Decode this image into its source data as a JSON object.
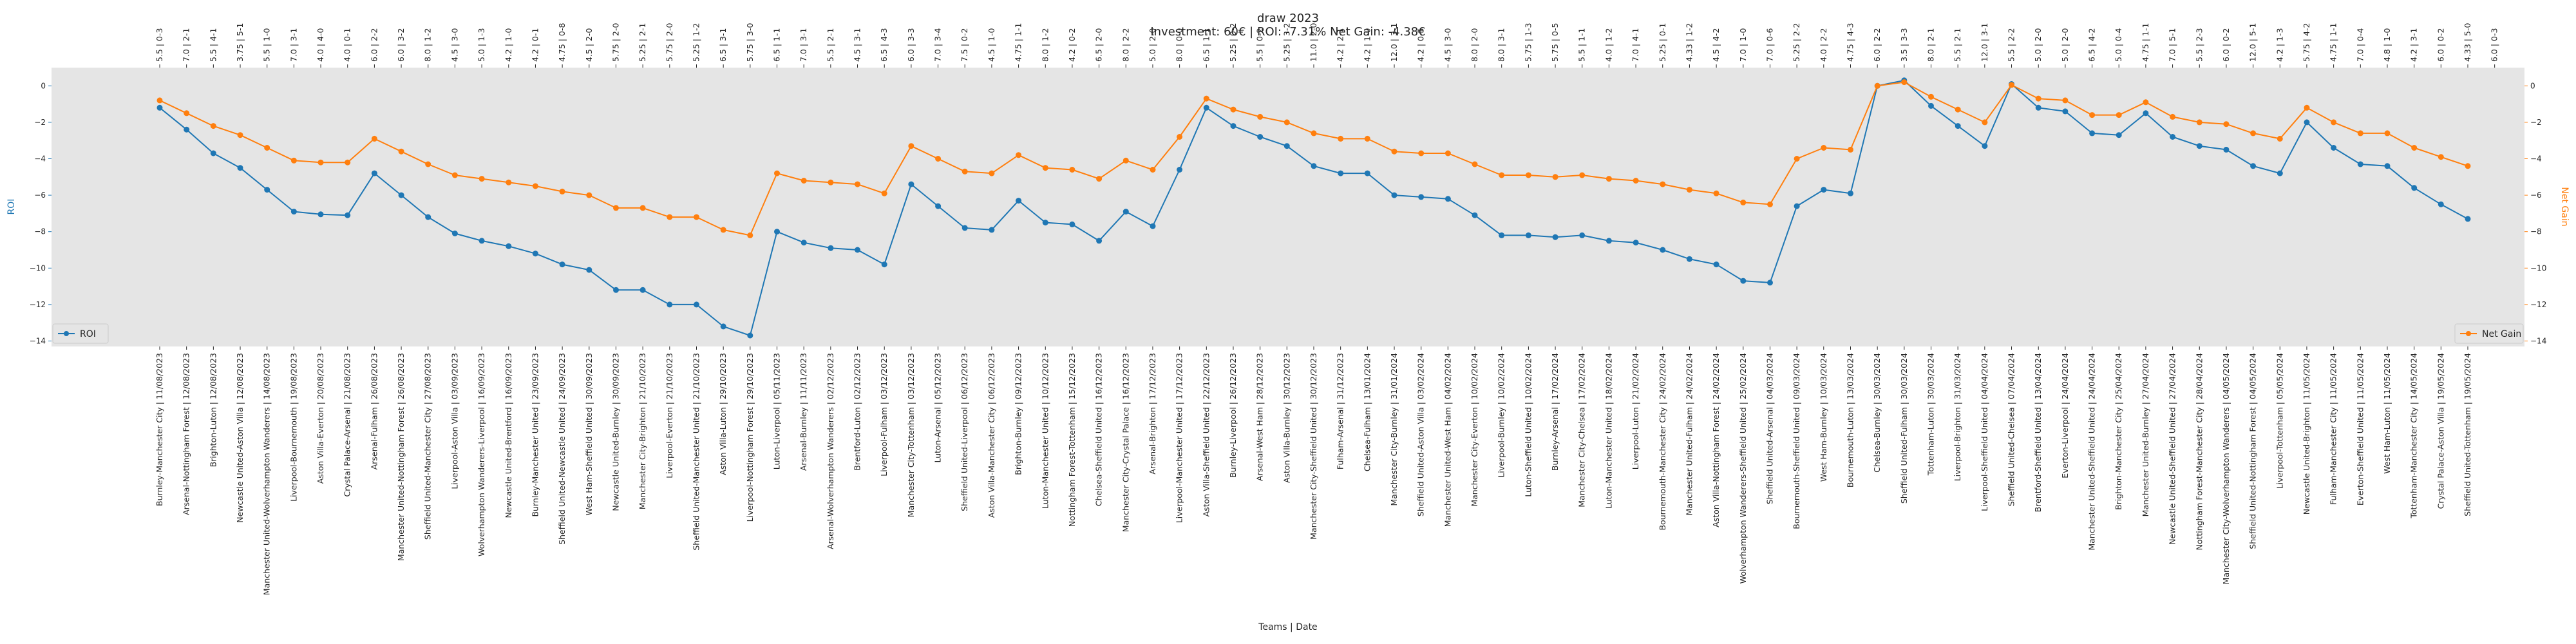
{
  "chart_data": {
    "type": "line",
    "title": "draw 2023",
    "subtitle": "Investment: 60€ | ROI: -7.31% Net Gain: -4.38€",
    "xlabel": "Teams | Date",
    "ylabel_left": "ROI",
    "ylabel_right": "Net Gain",
    "ylim_left": [
      -14.3,
      1.0
    ],
    "ylim_right": [
      -14.3,
      1.0
    ],
    "yticks_left": [
      -14,
      -12,
      -10,
      -8,
      -6,
      -4,
      -2,
      0
    ],
    "yticks_right": [
      -14,
      -12,
      -10,
      -8,
      -6,
      -4,
      -2,
      0
    ],
    "grid": false,
    "legend_left": {
      "label": "ROI",
      "position": "lower-left"
    },
    "legend_right": {
      "label": "Net Gain",
      "position": "lower-right"
    },
    "colors": {
      "roi": "#1f77b4",
      "net_gain": "#ff7f0e",
      "plot_bg": "#e5e5e5"
    },
    "categories": [
      "Burnley-Manchester City | 11/08/2023",
      "Arsenal-Nottingham Forest | 12/08/2023",
      "Brighton-Luton | 12/08/2023",
      "Newcastle United-Aston Villa | 12/08/2023",
      "Manchester United-Wolverhampton Wanderers | 14/08/2023",
      "Liverpool-Bournemouth | 19/08/2023",
      "Aston Villa-Everton | 20/08/2023",
      "Crystal Palace-Arsenal | 21/08/2023",
      "Arsenal-Fulham | 26/08/2023",
      "Manchester United-Nottingham Forest | 26/08/2023",
      "Sheffield United-Manchester City | 27/08/2023",
      "Liverpool-Aston Villa | 03/09/2023",
      "Wolverhampton Wanderers-Liverpool | 16/09/2023",
      "Newcastle United-Brentford | 16/09/2023",
      "Burnley-Manchester United | 23/09/2023",
      "Sheffield United-Newcastle United | 24/09/2023",
      "West Ham-Sheffield United | 30/09/2023",
      "Newcastle United-Burnley | 30/09/2023",
      "Manchester City-Brighton | 21/10/2023",
      "Liverpool-Everton | 21/10/2023",
      "Sheffield United-Manchester United | 21/10/2023",
      "Aston Villa-Luton | 29/10/2023",
      "Liverpool-Nottingham Forest | 29/10/2023",
      "Luton-Liverpool | 05/11/2023",
      "Arsenal-Burnley | 11/11/2023",
      "Arsenal-Wolverhampton Wanderers | 02/12/2023",
      "Brentford-Luton | 02/12/2023",
      "Liverpool-Fulham | 03/12/2023",
      "Manchester City-Tottenham | 03/12/2023",
      "Luton-Arsenal | 05/12/2023",
      "Sheffield United-Liverpool | 06/12/2023",
      "Aston Villa-Manchester City | 06/12/2023",
      "Brighton-Burnley | 09/12/2023",
      "Luton-Manchester United | 10/12/2023",
      "Nottingham Forest-Tottenham | 15/12/2023",
      "Chelsea-Sheffield United | 16/12/2023",
      "Manchester City-Crystal Palace | 16/12/2023",
      "Arsenal-Brighton | 17/12/2023",
      "Liverpool-Manchester United | 17/12/2023",
      "Aston Villa-Sheffield United | 22/12/2023",
      "Burnley-Liverpool | 26/12/2023",
      "Arsenal-West Ham | 28/12/2023",
      "Aston Villa-Burnley | 30/12/2023",
      "Manchester City-Sheffield United | 30/12/2023",
      "Fulham-Arsenal | 31/12/2023",
      "Chelsea-Fulham | 13/01/2024",
      "Manchester City-Burnley | 31/01/2024",
      "Sheffield United-Aston Villa | 03/02/2024",
      "Manchester United-West Ham | 04/02/2024",
      "Manchester City-Everton | 10/02/2024",
      "Liverpool-Burnley | 10/02/2024",
      "Luton-Sheffield United | 10/02/2024",
      "Burnley-Arsenal | 17/02/2024",
      "Manchester City-Chelsea | 17/02/2024",
      "Luton-Manchester United | 18/02/2024",
      "Liverpool-Luton | 21/02/2024",
      "Bournemouth-Manchester City | 24/02/2024",
      "Manchester United-Fulham | 24/02/2024",
      "Aston Villa-Nottingham Forest | 24/02/2024",
      "Wolverhampton Wanderers-Sheffield United | 25/02/2024",
      "Sheffield United-Arsenal | 04/03/2024",
      "Bournemouth-Sheffield United | 09/03/2024",
      "West Ham-Burnley | 10/03/2024",
      "Bournemouth-Luton | 13/03/2024",
      "Chelsea-Burnley | 30/03/2024",
      "Sheffield United-Fulham | 30/03/2024",
      "Tottenham-Luton | 30/03/2024",
      "Liverpool-Brighton | 31/03/2024",
      "Liverpool-Sheffield United | 04/04/2024",
      "Sheffield United-Chelsea | 07/04/2024",
      "Brentford-Sheffield United | 13/04/2024",
      "Everton-Liverpool | 24/04/2024",
      "Manchester United-Sheffield United | 24/04/2024",
      "Brighton-Manchester City | 25/04/2024",
      "Manchester United-Burnley | 27/04/2024",
      "Newcastle United-Sheffield United | 27/04/2024",
      "Nottingham Forest-Manchester City | 28/04/2024",
      "Manchester City-Wolverhampton Wanderers | 04/05/2024",
      "Sheffield United-Nottingham Forest | 04/05/2024",
      "Liverpool-Tottenham | 05/05/2024",
      "Newcastle United-Brighton | 11/05/2024",
      "Fulham-Manchester City | 11/05/2024",
      "Everton-Sheffield United | 11/05/2024",
      "West Ham-Luton | 11/05/2024",
      "Tottenham-Manchester City | 14/05/2024",
      "Crystal Palace-Aston Villa | 19/05/2024",
      "Sheffield United-Tottenham | 19/05/2024"
    ],
    "top_labels": [
      "5.5 | 0-3",
      "7.0 | 2-1",
      "5.5 | 4-1",
      "3.75 | 5-1",
      "5.5 | 1-0",
      "7.0 | 3-1",
      "4.0 | 4-0",
      "4.0 | 0-1",
      "6.0 | 2-2",
      "6.0 | 3-2",
      "8.0 | 1-2",
      "4.5 | 3-0",
      "5.0 | 1-3",
      "4.2 | 1-0",
      "4.2 | 0-1",
      "4.75 | 0-8",
      "4.5 | 2-0",
      "5.75 | 2-0",
      "5.25 | 2-1",
      "5.75 | 2-0",
      "5.25 | 1-2",
      "6.5 | 3-1",
      "5.75 | 3-0",
      "6.5 | 1-1",
      "7.0 | 3-1",
      "5.5 | 2-1",
      "4.5 | 3-1",
      "6.5 | 4-3",
      "6.0 | 3-3",
      "7.0 | 3-4",
      "7.5 | 0-2",
      "4.5 | 1-0",
      "4.75 | 1-1",
      "8.0 | 1-2",
      "4.2 | 0-2",
      "6.5 | 2-0",
      "8.0 | 2-2",
      "5.0 | 2-0",
      "8.0 | 0-0",
      "6.5 | 1-1",
      "5.25 | 0-2",
      "5.5 | 0-2",
      "5.25 | 3-2",
      "11.0 | 2-0",
      "4.2 | 2-1",
      "4.2 | 1-0",
      "12.0 | 3-1",
      "4.2 | 0-5",
      "4.5 | 3-0",
      "8.0 | 2-0",
      "8.0 | 3-1",
      "5.75 | 1-3",
      "5.75 | 0-5",
      "5.5 | 1-1",
      "4.0 | 1-2",
      "7.0 | 4-1",
      "5.25 | 0-1",
      "4.33 | 1-2",
      "4.5 | 4-2",
      "7.0 | 1-0",
      "7.0 | 0-6",
      "5.25 | 2-2",
      "4.0 | 2-2",
      "4.75 | 4-3",
      "6.0 | 2-2",
      "3.5 | 3-3",
      "8.0 | 2-1",
      "5.5 | 2-1",
      "12.0 | 3-1",
      "5.5 | 2-2",
      "5.0 | 2-0",
      "5.0 | 2-0",
      "6.5 | 4-2",
      "5.0 | 0-4",
      "4.75 | 1-1",
      "7.0 | 5-1",
      "5.5 | 2-3",
      "6.0 | 0-2",
      "12.0 | 5-1",
      "4.2 | 1-3",
      "5.75 | 4-2",
      "4.75 | 1-1",
      "7.0 | 0-4",
      "4.8 | 1-0",
      "4.2 | 3-1",
      "6.0 | 0-2",
      "4.33 | 5-0",
      "6.0 | 0-3"
    ],
    "series": [
      {
        "name": "ROI",
        "axis": "left",
        "values": [
          -1.2,
          -2.4,
          -3.7,
          -4.5,
          -5.7,
          -6.9,
          -7.05,
          -7.1,
          -4.8,
          -6.0,
          -7.2,
          -8.1,
          -8.5,
          -8.8,
          -9.2,
          -9.8,
          -10.1,
          -11.2,
          -11.2,
          -12.0,
          -12.0,
          -13.2,
          -13.7,
          -8.0,
          -8.6,
          -8.9,
          -9.0,
          -9.8,
          -5.4,
          -6.6,
          -7.8,
          -7.9,
          -6.3,
          -7.5,
          -7.6,
          -8.5,
          -6.9,
          -7.7,
          -4.6,
          -1.2,
          -2.2,
          -2.8,
          -3.3,
          -4.4,
          -4.8,
          -4.8,
          -6.0,
          -6.1,
          -6.2,
          -7.1,
          -8.2,
          -8.2,
          -8.3,
          -8.2,
          -8.5,
          -8.6,
          -9.0,
          -9.5,
          -9.8,
          -10.7,
          -10.8,
          -6.6,
          -5.7,
          -5.9,
          0.0,
          0.3,
          -1.1,
          -2.2,
          -3.3,
          0.1,
          -1.2,
          -1.4,
          -2.6,
          -2.7,
          -1.5,
          -2.8,
          -3.3,
          -3.5,
          -4.4,
          -4.8,
          -2.0,
          -3.4,
          -4.3,
          -4.4,
          -5.6,
          -6.5,
          -7.3
        ]
      },
      {
        "name": "Net Gain",
        "axis": "right",
        "values": [
          -0.8,
          -1.5,
          -2.2,
          -2.7,
          -3.4,
          -4.1,
          -4.2,
          -4.2,
          -2.9,
          -3.6,
          -4.3,
          -4.9,
          -5.1,
          -5.3,
          -5.5,
          -5.8,
          -6.0,
          -6.7,
          -6.7,
          -7.2,
          -7.2,
          -7.9,
          -8.2,
          -4.8,
          -5.2,
          -5.3,
          -5.4,
          -5.9,
          -3.3,
          -4.0,
          -4.7,
          -4.8,
          -3.8,
          -4.5,
          -4.6,
          -5.1,
          -4.1,
          -4.6,
          -2.8,
          -0.7,
          -1.3,
          -1.7,
          -2.0,
          -2.6,
          -2.9,
          -2.9,
          -3.6,
          -3.7,
          -3.7,
          -4.3,
          -4.9,
          -4.9,
          -5.0,
          -4.9,
          -5.1,
          -5.2,
          -5.4,
          -5.7,
          -5.9,
          -6.4,
          -6.5,
          -4.0,
          -3.4,
          -3.5,
          0.0,
          0.2,
          -0.6,
          -1.3,
          -2.0,
          0.05,
          -0.7,
          -0.8,
          -1.6,
          -1.6,
          -0.9,
          -1.7,
          -2.0,
          -2.1,
          -2.6,
          -2.9,
          -1.2,
          -2.0,
          -2.6,
          -2.6,
          -3.4,
          -3.9,
          -4.4
        ]
      }
    ]
  }
}
